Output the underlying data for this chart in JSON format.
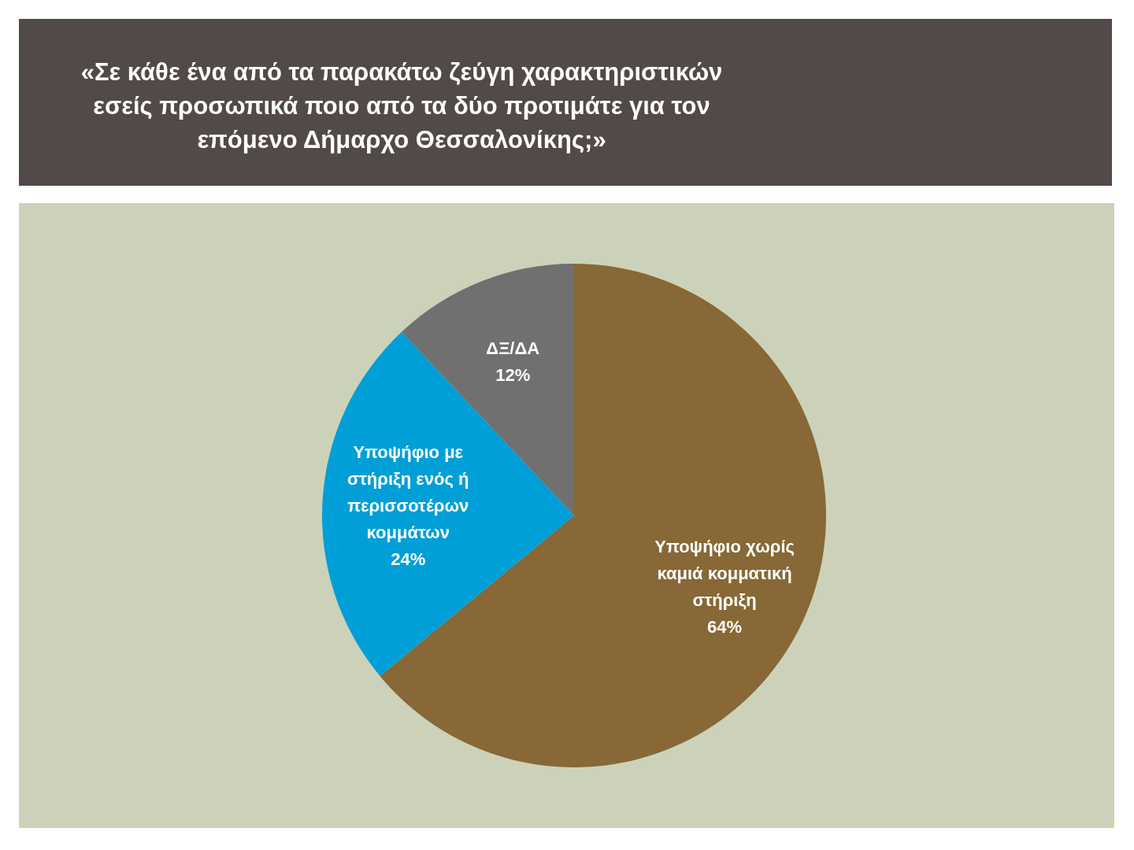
{
  "chart_data": {
    "type": "pie",
    "title": "«Σε κάθε ένα από τα παρακάτω ζεύγη χαρακτηριστικών εσείς προσωπικά ποιο από τα δύο προτιμάτε για τον επόμενο Δήμαρχο Θεσσαλονίκης;»",
    "categories": [
      "Υποψήφιο χωρίς καμιά κομματική στήριξη",
      "Υποψήφιο με στήριξη ενός ή περισσοτέρων κομμάτων",
      "ΔΞ/ΔΑ"
    ],
    "values": [
      64,
      24,
      12
    ],
    "colors": [
      "#876836",
      "#009fd7",
      "#707070"
    ],
    "value_labels": [
      "64%",
      "24%",
      "12%"
    ]
  }
}
